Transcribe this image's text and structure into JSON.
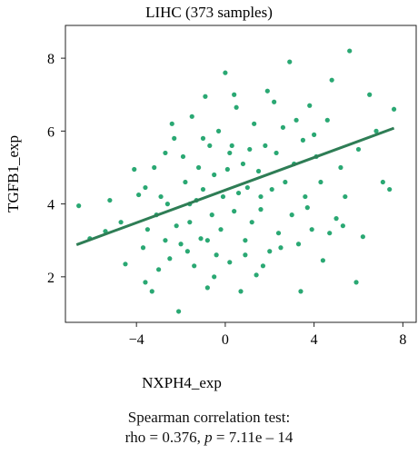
{
  "chart_data": {
    "type": "scatter",
    "title": "LIHC (373 samples)",
    "xlabel": "NXPH4_exp",
    "ylabel": "TGFB1_exp",
    "xlim": [
      -7.2,
      8.6
    ],
    "ylim": [
      0.75,
      8.9
    ],
    "xticks": [
      -4,
      0,
      4,
      8
    ],
    "yticks": [
      2,
      4,
      6,
      8
    ],
    "grid": false,
    "point_color": "#2aa873",
    "line_color": "#2e7d55",
    "regression_line": {
      "x": [
        -6.7,
        7.6
      ],
      "y": [
        2.88,
        6.08
      ]
    },
    "points": [
      [
        -6.6,
        3.95
      ],
      [
        -6.1,
        3.05
      ],
      [
        -5.4,
        3.25
      ],
      [
        -5.2,
        4.1
      ],
      [
        -4.1,
        4.95
      ],
      [
        -4.7,
        3.5
      ],
      [
        -4.5,
        2.35
      ],
      [
        -3.9,
        4.25
      ],
      [
        -3.6,
        4.45
      ],
      [
        -3.5,
        3.3
      ],
      [
        -3.6,
        1.85
      ],
      [
        -3.3,
        1.6
      ],
      [
        -3.1,
        3.7
      ],
      [
        -2.9,
        4.2
      ],
      [
        -2.7,
        5.4
      ],
      [
        -2.7,
        3.0
      ],
      [
        -2.5,
        2.5
      ],
      [
        -2.3,
        5.8
      ],
      [
        -2.1,
        1.05
      ],
      [
        -2.0,
        2.9
      ],
      [
        -1.9,
        5.3
      ],
      [
        -1.8,
        4.6
      ],
      [
        -1.6,
        3.5
      ],
      [
        -1.5,
        6.4
      ],
      [
        -1.4,
        2.3
      ],
      [
        -1.3,
        4.1
      ],
      [
        -1.2,
        5.0
      ],
      [
        -1.1,
        3.05
      ],
      [
        -1.0,
        4.4
      ],
      [
        -0.9,
        6.95
      ],
      [
        -0.8,
        1.7
      ],
      [
        -0.7,
        5.6
      ],
      [
        -0.6,
        3.7
      ],
      [
        -0.5,
        4.8
      ],
      [
        -0.4,
        2.6
      ],
      [
        -0.3,
        6.0
      ],
      [
        -0.2,
        3.3
      ],
      [
        -0.1,
        4.2
      ],
      [
        0.0,
        7.6
      ],
      [
        0.1,
        4.95
      ],
      [
        0.2,
        2.4
      ],
      [
        0.3,
        5.6
      ],
      [
        0.4,
        3.8
      ],
      [
        0.5,
        6.65
      ],
      [
        0.6,
        4.3
      ],
      [
        0.7,
        1.6
      ],
      [
        0.8,
        5.1
      ],
      [
        0.9,
        3.0
      ],
      [
        1.0,
        4.45
      ],
      [
        1.1,
        5.5
      ],
      [
        1.2,
        3.5
      ],
      [
        1.3,
        6.2
      ],
      [
        1.4,
        2.05
      ],
      [
        1.5,
        4.9
      ],
      [
        1.6,
        3.85
      ],
      [
        1.8,
        5.6
      ],
      [
        1.9,
        7.1
      ],
      [
        2.0,
        2.7
      ],
      [
        2.1,
        4.4
      ],
      [
        2.3,
        5.4
      ],
      [
        2.4,
        3.2
      ],
      [
        2.6,
        6.1
      ],
      [
        2.7,
        4.6
      ],
      [
        2.9,
        7.9
      ],
      [
        3.0,
        3.7
      ],
      [
        3.1,
        5.1
      ],
      [
        3.3,
        2.9
      ],
      [
        3.4,
        1.6
      ],
      [
        3.5,
        5.75
      ],
      [
        3.6,
        4.2
      ],
      [
        3.8,
        6.7
      ],
      [
        3.9,
        3.3
      ],
      [
        4.1,
        5.3
      ],
      [
        4.3,
        4.6
      ],
      [
        4.4,
        2.45
      ],
      [
        4.6,
        6.3
      ],
      [
        4.8,
        7.4
      ],
      [
        5.0,
        3.6
      ],
      [
        5.2,
        5.0
      ],
      [
        5.4,
        4.2
      ],
      [
        5.6,
        8.2
      ],
      [
        5.9,
        1.85
      ],
      [
        6.0,
        5.5
      ],
      [
        6.2,
        3.1
      ],
      [
        6.5,
        7.0
      ],
      [
        6.8,
        6.0
      ],
      [
        7.1,
        4.6
      ],
      [
        7.4,
        4.4
      ],
      [
        7.6,
        6.6
      ],
      [
        -3.7,
        2.8
      ],
      [
        -3.0,
        2.2
      ],
      [
        -2.6,
        4.0
      ],
      [
        -2.2,
        3.4
      ],
      [
        -1.7,
        2.7
      ],
      [
        -1.0,
        5.8
      ],
      [
        -0.5,
        2.0
      ],
      [
        0.4,
        7.0
      ],
      [
        1.7,
        2.3
      ],
      [
        2.2,
        6.8
      ],
      [
        3.2,
        6.3
      ],
      [
        4.0,
        5.9
      ],
      [
        4.7,
        3.2
      ],
      [
        -3.2,
        5.0
      ],
      [
        -2.4,
        6.2
      ],
      [
        -1.6,
        4.0
      ],
      [
        -0.8,
        3.0
      ],
      [
        0.2,
        5.4
      ],
      [
        0.9,
        2.6
      ],
      [
        1.6,
        4.2
      ],
      [
        2.5,
        2.8
      ],
      [
        3.7,
        3.9
      ],
      [
        5.3,
        3.4
      ]
    ]
  },
  "caption": {
    "line1": "Spearman correlation test:",
    "rho_text": "rho = 0.376, ",
    "p_symbol": "p",
    "p_text": " = 7.11e – 14"
  }
}
